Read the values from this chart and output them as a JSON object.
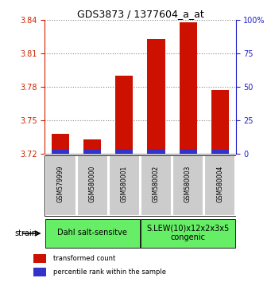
{
  "title": "GDS3873 / 1377604_a_at",
  "samples": [
    "GSM579999",
    "GSM580000",
    "GSM580001",
    "GSM580002",
    "GSM580003",
    "GSM580004"
  ],
  "red_values": [
    3.738,
    3.733,
    3.79,
    3.823,
    3.838,
    3.777
  ],
  "blue_values": [
    3.7235,
    3.7235,
    3.7245,
    3.7245,
    3.7245,
    3.7235
  ],
  "ylim_left": [
    3.72,
    3.84
  ],
  "ylim_right": [
    0,
    100
  ],
  "yticks_left": [
    3.72,
    3.75,
    3.78,
    3.81,
    3.84
  ],
  "yticks_right": [
    0,
    25,
    50,
    75,
    100
  ],
  "bar_base": 3.72,
  "groups": [
    {
      "label": "Dahl salt-sensitve",
      "start": 0,
      "end": 3,
      "color": "#5aed5a"
    },
    {
      "label": "S.LEW(10)x12x2x3x5\ncongenic",
      "start": 3,
      "end": 6,
      "color": "#5aed5a"
    }
  ],
  "legend_red": "transformed count",
  "legend_blue": "percentile rank within the sample",
  "strain_label": "strain",
  "bar_width": 0.55,
  "red_color": "#cc1100",
  "blue_color": "#3333cc",
  "left_axis_color": "#cc2200",
  "right_axis_color": "#2222cc",
  "grid_color": "#888888",
  "sample_box_color": "#cccccc",
  "group_box_color": "#66ee66",
  "title_fontsize": 9,
  "tick_fontsize": 7,
  "sample_fontsize": 5.5,
  "group_fontsize": 7,
  "legend_fontsize": 6
}
